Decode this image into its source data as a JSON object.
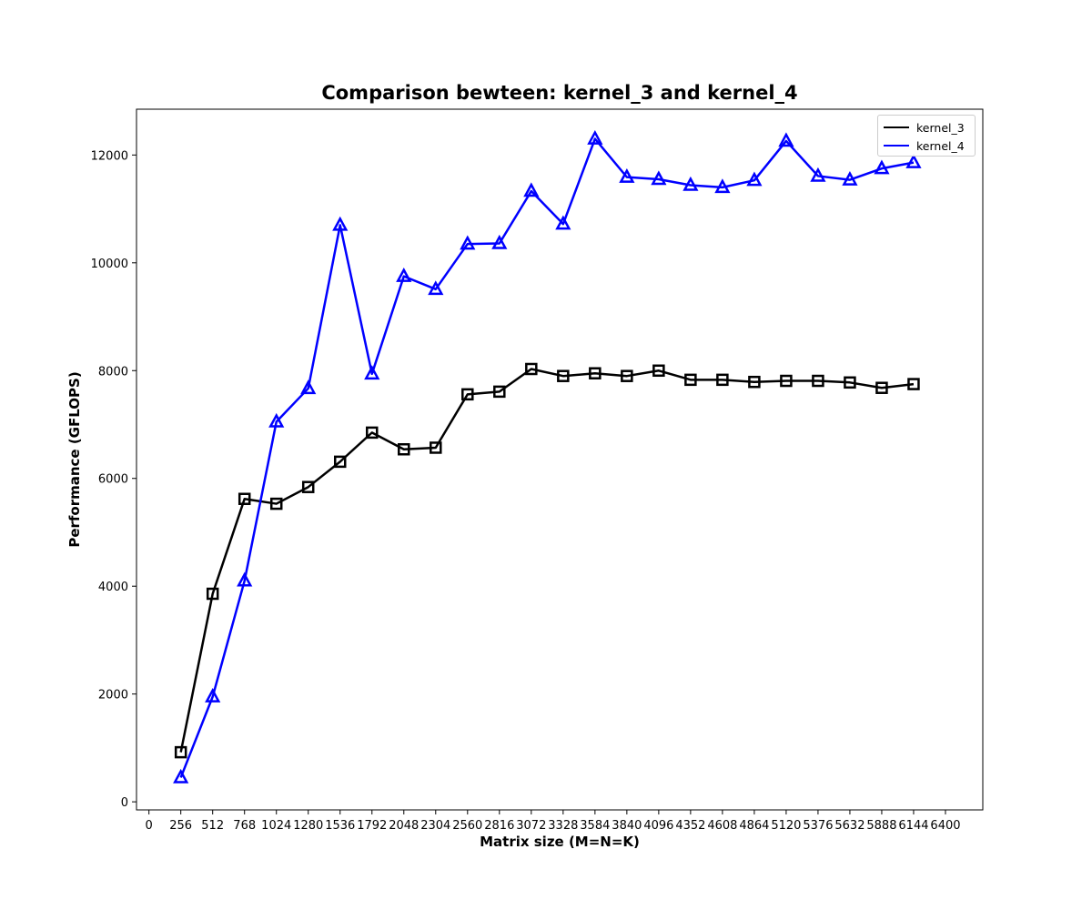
{
  "chart_data": {
    "type": "line",
    "title": "Comparison bewteen: kernel_3 and kernel_4",
    "xlabel": "Matrix size (M=N=K)",
    "ylabel": "Performance (GFLOPS)",
    "xlim": [
      -100,
      6700
    ],
    "ylim": [
      -150,
      12850
    ],
    "xticks": [
      0,
      256,
      512,
      768,
      1024,
      1280,
      1536,
      1792,
      2048,
      2304,
      2560,
      2816,
      3072,
      3328,
      3584,
      3840,
      4096,
      4352,
      4608,
      4864,
      5120,
      5376,
      5632,
      5888,
      6144,
      6400
    ],
    "yticks": [
      0,
      2000,
      4000,
      6000,
      8000,
      10000,
      12000
    ],
    "grid": false,
    "legend_position": "top-right",
    "x": [
      256,
      512,
      768,
      1024,
      1280,
      1536,
      1792,
      2048,
      2304,
      2560,
      2816,
      3072,
      3328,
      3584,
      3840,
      4096,
      4352,
      4608,
      4864,
      5120,
      5376,
      5632,
      5888,
      6144
    ],
    "series": [
      {
        "name": "kernel_3",
        "color": "#000000",
        "marker": "square",
        "values": [
          920,
          3860,
          5620,
          5530,
          5840,
          6310,
          6850,
          6540,
          6570,
          7560,
          7610,
          8030,
          7900,
          7950,
          7900,
          8000,
          7830,
          7830,
          7790,
          7810,
          7810,
          7780,
          7680,
          7750
        ]
      },
      {
        "name": "kernel_4",
        "color": "#0000ff",
        "marker": "triangle",
        "values": [
          450,
          1950,
          4100,
          7050,
          7670,
          10700,
          7940,
          9750,
          9510,
          10350,
          10360,
          11330,
          10720,
          12300,
          11590,
          11550,
          11440,
          11400,
          11530,
          12260,
          11610,
          11540,
          11750,
          11860
        ]
      }
    ]
  }
}
